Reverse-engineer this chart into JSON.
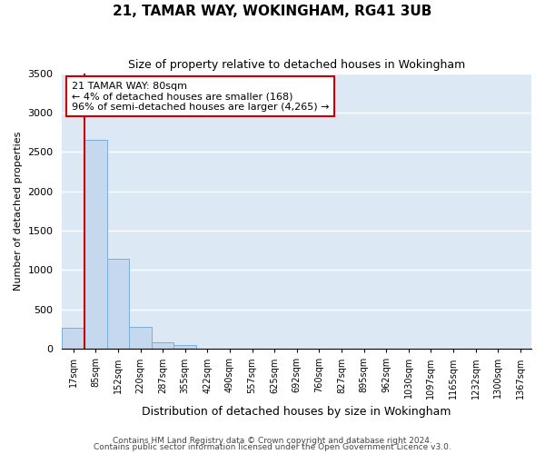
{
  "title": "21, TAMAR WAY, WOKINGHAM, RG41 3UB",
  "subtitle": "Size of property relative to detached houses in Wokingham",
  "xlabel": "Distribution of detached houses by size in Wokingham",
  "ylabel": "Number of detached properties",
  "categories": [
    "17sqm",
    "85sqm",
    "152sqm",
    "220sqm",
    "287sqm",
    "355sqm",
    "422sqm",
    "490sqm",
    "557sqm",
    "625sqm",
    "692sqm",
    "760sqm",
    "827sqm",
    "895sqm",
    "962sqm",
    "1030sqm",
    "1097sqm",
    "1165sqm",
    "1232sqm",
    "1300sqm",
    "1367sqm"
  ],
  "values": [
    270,
    2650,
    1140,
    280,
    85,
    50,
    0,
    0,
    0,
    0,
    0,
    0,
    0,
    0,
    0,
    0,
    0,
    0,
    0,
    0,
    0
  ],
  "bar_color": "#c5d8ed",
  "bar_edge_color": "#7bafd4",
  "background_color": "#dce9f5",
  "grid_color": "#ffffff",
  "vline_color": "#cc0000",
  "annotation_text": "21 TAMAR WAY: 80sqm\n← 4% of detached houses are smaller (168)\n96% of semi-detached houses are larger (4,265) →",
  "annotation_box_color": "#cc0000",
  "ylim": [
    0,
    3500
  ],
  "title_fontsize": 11,
  "subtitle_fontsize": 9,
  "ylabel_fontsize": 8,
  "xlabel_fontsize": 9,
  "footnote1": "Contains HM Land Registry data © Crown copyright and database right 2024.",
  "footnote2": "Contains public sector information licensed under the Open Government Licence v3.0."
}
